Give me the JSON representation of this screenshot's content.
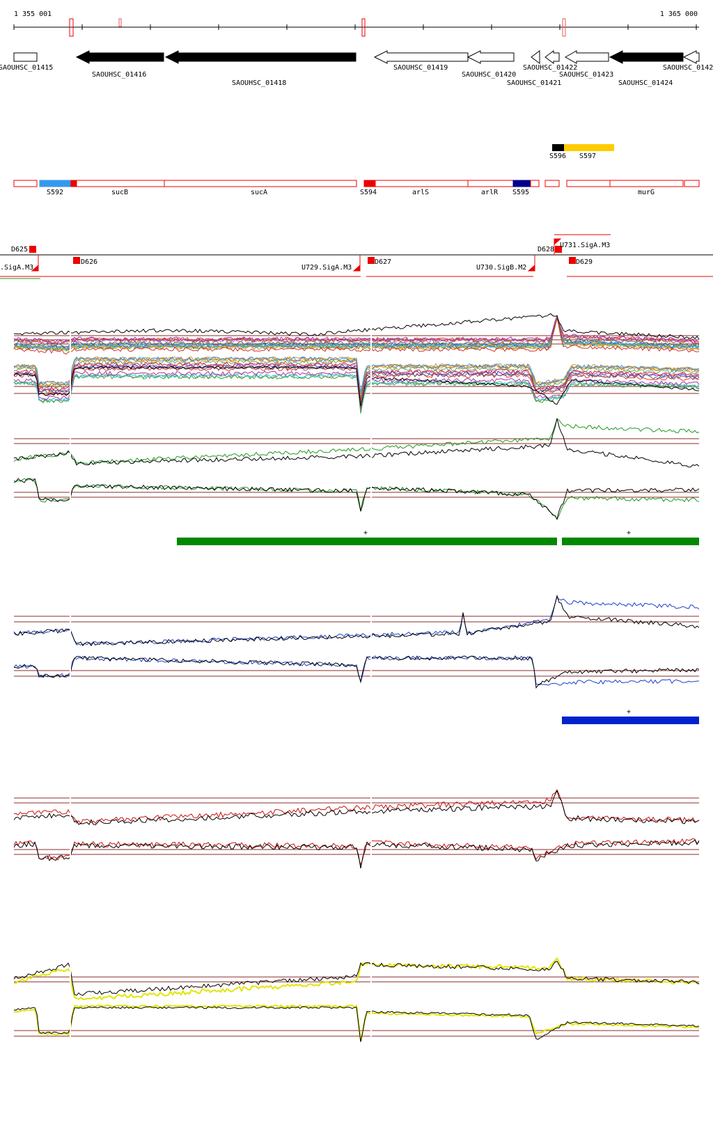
{
  "ruler": {
    "start_label": "1 355 001",
    "end_label": "1 365 000"
  },
  "genes": [
    {
      "name": "SAOUHSC_01415",
      "strand": "+",
      "fill": "white"
    },
    {
      "name": "SAOUHSC_01416",
      "strand": "-",
      "fill": "black"
    },
    {
      "name": "SAOUHSC_01418",
      "strand": "-",
      "fill": "black"
    },
    {
      "name": "SAOUHSC_01419",
      "strand": "-",
      "fill": "white"
    },
    {
      "name": "SAOUHSC_01420",
      "strand": "-",
      "fill": "white"
    },
    {
      "name": "SAOUHSC_01421",
      "strand": "-",
      "fill": "white"
    },
    {
      "name": "SAOUHSC_01422",
      "strand": "-",
      "fill": "white"
    },
    {
      "name": "SAOUHSC_01423",
      "strand": "-",
      "fill": "white"
    },
    {
      "name": "SAOUHSC_01424",
      "strand": "-",
      "fill": "black"
    },
    {
      "name": "SAOUHSC_0142",
      "strand": "-",
      "fill": "white"
    }
  ],
  "segments_top": [
    {
      "name": "S596",
      "color": "#000000"
    },
    {
      "name": "S597",
      "color": "#ffcc00"
    }
  ],
  "segments": [
    {
      "name": "S592",
      "color": "#3399ee"
    },
    {
      "name": "sucB",
      "color": "#ffffff"
    },
    {
      "name": "sucA",
      "color": "#ffffff"
    },
    {
      "name": "S594",
      "color": "#ee0000"
    },
    {
      "name": "arlS",
      "color": "#ffffff"
    },
    {
      "name": "arlR",
      "color": "#ffffff"
    },
    {
      "name": "S595",
      "color": "#000088"
    },
    {
      "name": "murG",
      "color": "#ffffff"
    }
  ],
  "features": [
    {
      "name": "D625"
    },
    {
      "name": "D626"
    },
    {
      "name": ".SigA.M3"
    },
    {
      "name": "U729.SigA.M3"
    },
    {
      "name": "D627"
    },
    {
      "name": "U730.SigB.M2"
    },
    {
      "name": "D628"
    },
    {
      "name": "U731.SigA.M3"
    },
    {
      "name": "D629"
    }
  ],
  "track_colors": {
    "green": "#1e9a1e",
    "bar_green": "#008800",
    "blue": "#1a3fcc",
    "bar_blue": "#0022cc",
    "red": "#cc1111",
    "yellow": "#e2e600",
    "ref": "#8b2b2b"
  },
  "plus_markers": [
    "+",
    "+",
    "+"
  ]
}
